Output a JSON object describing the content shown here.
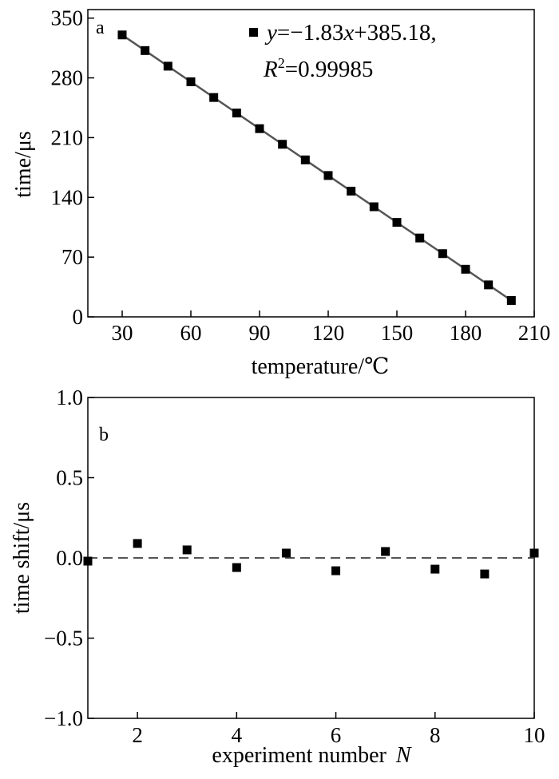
{
  "chart_data": [
    {
      "type": "scatter",
      "panel_label": "a",
      "xlabel": "temperature/℃",
      "ylabel": "time/μs",
      "xlim": [
        15,
        210
      ],
      "ylim": [
        0,
        360
      ],
      "xticks": [
        30,
        60,
        90,
        120,
        150,
        180,
        210
      ],
      "yticks": [
        0,
        70,
        140,
        210,
        280,
        350
      ],
      "grid": false,
      "legend_position": "top-right",
      "fit": {
        "slope": -1.83,
        "intercept": 385.18
      },
      "legend": {
        "eq_y": "y",
        "eq_mid": "=−1.83",
        "eq_x": "x",
        "eq_tail": "+385.18,",
        "r_base": "R",
        "r_exp": "2",
        "r_tail": "=0.99985"
      },
      "x": [
        30,
        40,
        50,
        60,
        70,
        80,
        90,
        100,
        110,
        120,
        130,
        140,
        150,
        160,
        170,
        180,
        190,
        200
      ],
      "y": [
        330.3,
        312.0,
        293.7,
        275.4,
        257.0,
        238.8,
        220.5,
        202.2,
        183.9,
        165.6,
        147.3,
        129.0,
        110.7,
        92.4,
        74.1,
        55.8,
        37.5,
        19.2
      ]
    },
    {
      "type": "scatter",
      "panel_label": "b",
      "xlabel_text": "experiment number",
      "xlabel_var": "N",
      "ylabel": "time shift/μs",
      "xlim": [
        1,
        10
      ],
      "ylim": [
        -1.0,
        1.0
      ],
      "xticks": [
        2,
        4,
        6,
        8,
        10
      ],
      "yticks": [
        -1.0,
        -0.5,
        0.0,
        0.5,
        1.0
      ],
      "ytick_labels": [
        "−1.0",
        "−0.5",
        "0.0",
        "0.5",
        "1.0"
      ],
      "grid": false,
      "reference_line": {
        "y": 0.0,
        "style": "dashed"
      },
      "x": [
        1,
        2,
        3,
        4,
        5,
        6,
        7,
        8,
        9,
        10
      ],
      "y": [
        -0.02,
        0.09,
        0.05,
        -0.06,
        0.03,
        -0.08,
        0.04,
        -0.07,
        -0.1,
        0.03
      ]
    }
  ]
}
